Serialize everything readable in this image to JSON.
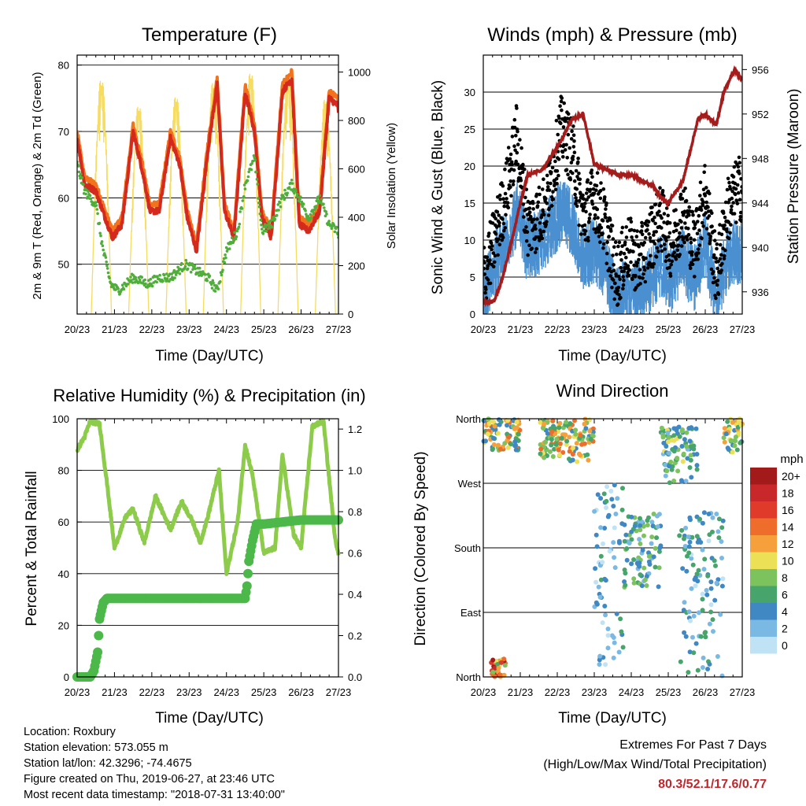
{
  "time_ticks": [
    "20/23",
    "21/23",
    "22/23",
    "23/23",
    "24/23",
    "25/23",
    "26/23",
    "27/23"
  ],
  "xlabel": "Time (Day/UTC)",
  "colors": {
    "temp2m": "#d42a1e",
    "temp9m": "#f2731c",
    "dew": "#4fae3a",
    "solar": "#f6dc60",
    "gust": "#000000",
    "wind": "#4a90d0",
    "pressure": "#a51c1c",
    "rh": "#8dcb4a",
    "precip": "#4cb84a"
  },
  "chart_data": [
    {
      "type": "line",
      "title": "Temperature (F)",
      "xlabel": "Time (Day/UTC)",
      "ylabel": "2m & 9m T (Red, Orange) & 2m Td (Green)",
      "y2label": "Solar Insolation (Yellow)",
      "ylim": [
        42.5,
        81.5
      ],
      "y2lim": [
        0,
        1070
      ],
      "yticks": [
        50,
        60,
        70,
        80
      ],
      "y2ticks": [
        0,
        200,
        400,
        600,
        800,
        1000
      ],
      "grid": true,
      "series": [
        {
          "name": "2m T",
          "color": "temp2m",
          "x": [
            0,
            0.2,
            0.5,
            0.75,
            0.95,
            1.2,
            1.5,
            1.75,
            1.95,
            2.2,
            2.5,
            2.75,
            2.95,
            3.2,
            3.5,
            3.75,
            3.95,
            4.2,
            4.5,
            4.75,
            4.95,
            5.2,
            5.5,
            5.75,
            5.95,
            6.2,
            6.5,
            6.75,
            6.97,
            7
          ],
          "y": [
            69,
            62,
            61,
            57,
            54,
            56,
            70,
            64,
            58,
            58,
            69,
            65,
            57,
            52,
            67,
            77,
            58,
            54,
            76,
            70,
            57,
            54,
            76,
            78,
            56,
            55,
            58,
            75,
            74,
            73
          ]
        },
        {
          "name": "2m Td",
          "color": "dew",
          "x": [
            0,
            0.2,
            0.5,
            0.7,
            0.9,
            1.1,
            1.5,
            1.9,
            2.2,
            2.5,
            2.9,
            3.2,
            3.5,
            3.75,
            4.0,
            4.3,
            4.5,
            4.75,
            4.95,
            5.2,
            5.5,
            5.75,
            5.95,
            6.2,
            6.5,
            6.75,
            6.97,
            7
          ],
          "y": [
            65,
            61,
            59,
            52,
            47,
            46,
            48,
            47,
            48,
            48,
            50,
            49,
            48,
            46,
            52,
            55,
            62,
            66,
            55,
            56,
            60,
            62,
            60,
            57,
            60,
            56,
            55,
            54
          ]
        },
        {
          "name": "Solar Insolation",
          "color": "solar",
          "axis": "y2",
          "peaks": [
            0.65,
            1.65,
            2.65,
            3.65,
            4.65,
            5.65,
            6.65
          ],
          "peak_values": [
            990,
            880,
            920,
            980,
            1020,
            1000,
            910
          ]
        }
      ]
    },
    {
      "type": "scatter",
      "title": "Winds (mph) & Pressure (mb)",
      "xlabel": "Time (Day/UTC)",
      "ylabel": "Sonic Wind & Gust (Blue, Black)",
      "y2label": "Station Pressure (Maroon)",
      "ylim": [
        0,
        35
      ],
      "y2lim": [
        934.0,
        957.3
      ],
      "yticks": [
        0,
        5,
        10,
        15,
        20,
        25,
        30
      ],
      "y2ticks": [
        936,
        940,
        944,
        948,
        952,
        956
      ],
      "grid": true,
      "series": [
        {
          "name": "Gust",
          "color": "gust",
          "x": [
            0,
            0.3,
            0.6,
            0.9,
            1.2,
            1.5,
            1.8,
            2.1,
            2.4,
            2.7,
            3.0,
            3.3,
            3.6,
            3.9,
            4.2,
            4.5,
            4.8,
            5.1,
            5.4,
            5.7,
            6.0,
            6.3,
            6.6,
            6.9
          ],
          "y": [
            5,
            10,
            16,
            24,
            12,
            13,
            17,
            25,
            22,
            13,
            16,
            12,
            5,
            9,
            7,
            10,
            13,
            9,
            14,
            9,
            17,
            5,
            14,
            17
          ]
        },
        {
          "name": "Sonic Wind",
          "color": "wind",
          "x": [
            0,
            0.3,
            0.6,
            0.9,
            1.2,
            1.5,
            1.8,
            2.1,
            2.4,
            2.7,
            3.0,
            3.3,
            3.6,
            3.9,
            4.2,
            4.5,
            4.8,
            5.1,
            5.4,
            5.7,
            6.0,
            6.3,
            6.6,
            6.9
          ],
          "y": [
            3,
            7,
            10,
            14,
            9,
            10,
            12,
            14,
            13,
            8,
            9,
            7,
            2,
            4,
            3,
            5,
            7,
            5,
            8,
            5,
            10,
            2,
            8,
            9
          ]
        },
        {
          "name": "Station Pressure",
          "color": "pressure",
          "axis": "y2",
          "x": [
            0,
            0.3,
            0.5,
            0.8,
            1.0,
            1.2,
            1.6,
            2.0,
            2.4,
            2.7,
            3.0,
            3.3,
            3.7,
            4.0,
            4.3,
            4.6,
            4.8,
            5.0,
            5.4,
            5.8,
            6.0,
            6.3,
            6.5,
            6.8,
            7.0
          ],
          "y": [
            935,
            935.2,
            937,
            941,
            944,
            946.5,
            947,
            949,
            951.5,
            952,
            947.5,
            947,
            946.5,
            946.5,
            946,
            945.5,
            944.5,
            944,
            946,
            951.5,
            952,
            951,
            954,
            956,
            955
          ]
        }
      ]
    },
    {
      "type": "line",
      "title": "Relative Humidity (%) & Precipitation (in)",
      "xlabel": "Time (Day/UTC)",
      "ylabel": "Percent & Total Rainfall",
      "ylim": [
        0,
        100
      ],
      "y2lim": [
        0,
        1.25
      ],
      "yticks": [
        0,
        20,
        40,
        60,
        80,
        100
      ],
      "y2ticks": [
        0.0,
        0.2,
        0.4,
        0.6,
        0.8,
        1.0,
        1.2
      ],
      "grid": true,
      "series": [
        {
          "name": "Relative Humidity",
          "color": "rh",
          "x": [
            0,
            0.2,
            0.35,
            0.6,
            0.8,
            1.0,
            1.3,
            1.5,
            1.8,
            2.1,
            2.5,
            2.8,
            3.1,
            3.3,
            3.5,
            3.8,
            4.0,
            4.3,
            4.5,
            4.7,
            5.0,
            5.3,
            5.5,
            5.8,
            6.0,
            6.3,
            6.6,
            6.9,
            7.0
          ],
          "y": [
            88,
            93,
            99,
            98,
            75,
            50,
            62,
            65,
            52,
            70,
            57,
            68,
            60,
            52,
            62,
            80,
            40,
            60,
            90,
            78,
            48,
            50,
            86,
            55,
            50,
            97,
            99,
            55,
            47
          ]
        },
        {
          "name": "Total Precipitation",
          "color": "precip",
          "axis": "y2",
          "x": [
            0,
            0.1,
            0.35,
            0.45,
            0.55,
            0.6,
            0.7,
            0.8,
            1.0,
            2.0,
            3.0,
            4.0,
            4.5,
            4.55,
            4.6,
            4.7,
            4.8,
            5.0,
            6.0,
            7.0
          ],
          "y": [
            0,
            0,
            0,
            0.03,
            0.12,
            0.28,
            0.36,
            0.38,
            0.38,
            0.38,
            0.38,
            0.38,
            0.38,
            0.44,
            0.56,
            0.66,
            0.74,
            0.74,
            0.76,
            0.76
          ]
        }
      ]
    },
    {
      "type": "scatter",
      "title": "Wind Direction",
      "xlabel": "Time (Day/UTC)",
      "ylabel": "Direction (Colored By Speed)",
      "ylim": [
        0,
        360
      ],
      "yticks": [
        0,
        90,
        180,
        270,
        360
      ],
      "ytick_labels": [
        "North",
        "East",
        "South",
        "West",
        "North"
      ],
      "grid": true,
      "clusters": [
        {
          "x": [
            0.0,
            1.0
          ],
          "dir": [
            315,
            360
          ],
          "speed": [
            3,
            14
          ]
        },
        {
          "x": [
            1.5,
            3.0
          ],
          "dir": [
            300,
            360
          ],
          "speed": [
            4,
            15
          ]
        },
        {
          "x": [
            3.0,
            3.8
          ],
          "dir": [
            0,
            270
          ],
          "speed": [
            0,
            6
          ]
        },
        {
          "x": [
            3.8,
            4.8
          ],
          "dir": [
            120,
            230
          ],
          "speed": [
            1,
            9
          ]
        },
        {
          "x": [
            4.8,
            5.8
          ],
          "dir": [
            270,
            350
          ],
          "speed": [
            2,
            10
          ]
        },
        {
          "x": [
            5.3,
            6.5
          ],
          "dir": [
            0,
            230
          ],
          "speed": [
            0,
            7
          ]
        },
        {
          "x": [
            6.5,
            7.0
          ],
          "dir": [
            310,
            360
          ],
          "speed": [
            4,
            13
          ]
        },
        {
          "x": [
            0.2,
            0.6
          ],
          "dir": [
            0,
            25
          ],
          "speed": [
            6,
            20
          ]
        }
      ]
    }
  ],
  "colorbar": {
    "title": "mph",
    "labels": [
      "20+",
      "18",
      "16",
      "14",
      "12",
      "10",
      "8",
      "6",
      "4",
      "2",
      "0"
    ],
    "colors": [
      "#a31a1a",
      "#c8282a",
      "#e03a2a",
      "#ee6d2b",
      "#f6a03b",
      "#ece056",
      "#7cc35e",
      "#47a46a",
      "#3f88c3",
      "#7ab9e4",
      "#bfe3f5"
    ]
  },
  "footer": {
    "location": "Location: Roxbury",
    "elevation": "Station elevation: 573.055 m",
    "latlon": "Station lat/lon: 42.3296; -74.4675",
    "created": "Figure created on Thu, 2019-06-27, at 23:46 UTC",
    "recent": "Most recent data timestamp: \"2018-07-31 13:40:00\"",
    "extremes_title": "Extremes For Past 7 Days",
    "extremes_sub": "(High/Low/Max Wind/Total Precipitation)",
    "extremes_values": "80.3/52.1/17.6/0.77"
  }
}
